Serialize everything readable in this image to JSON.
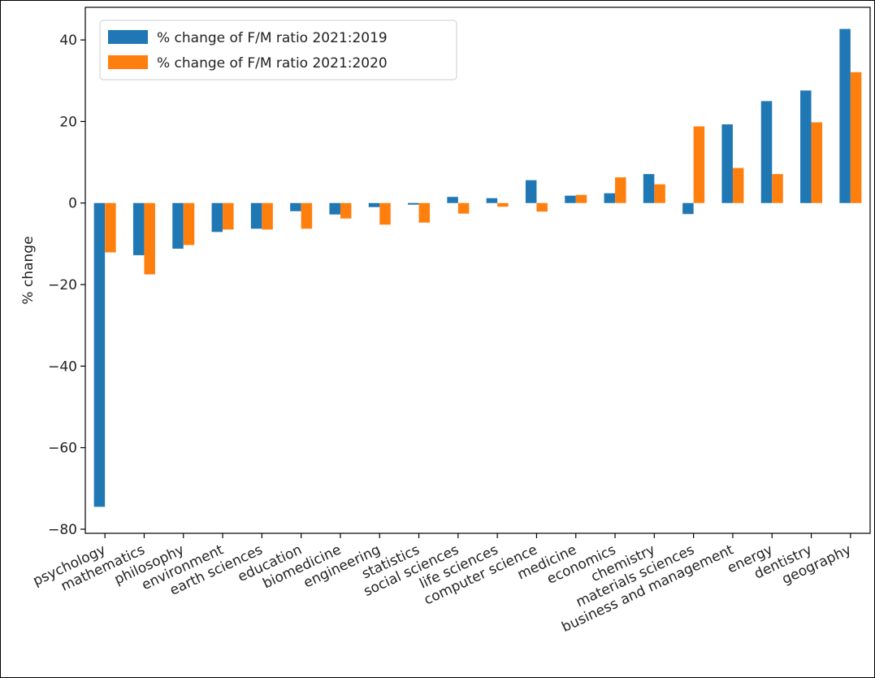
{
  "chart_data": {
    "type": "bar",
    "title": "",
    "xlabel": "",
    "ylabel": "% change",
    "ylim": [
      -81,
      48
    ],
    "yticks": [
      -80,
      -60,
      -40,
      -20,
      0,
      20,
      40
    ],
    "ytick_labels": [
      "−80",
      "−60",
      "−40",
      "−20",
      "0",
      "20",
      "40"
    ],
    "grid": false,
    "legend_position": "top-left",
    "categories": [
      "psychology",
      "mathematics",
      "philosophy",
      "environment",
      "earth sciences",
      "education",
      "biomedicine",
      "engineering",
      "statistics",
      "social sciences",
      "life sciences",
      "computer science",
      "medicine",
      "economics",
      "chemistry",
      "materials sciences",
      "business and management",
      "energy",
      "dentistry",
      "geography"
    ],
    "series": [
      {
        "name": "% change of F/M ratio 2021:2019",
        "color": "#1f77b4",
        "values": [
          -74.5,
          -12.8,
          -11.2,
          -7.1,
          -6.3,
          -2.0,
          -2.8,
          -1.0,
          -0.4,
          1.5,
          1.2,
          5.6,
          1.8,
          2.4,
          7.1,
          -2.7,
          19.3,
          25.0,
          27.6,
          42.7
        ]
      },
      {
        "name": "% change of F/M ratio 2021:2020",
        "color": "#ff7f0e",
        "values": [
          -12.1,
          -17.5,
          -10.3,
          -6.5,
          -6.5,
          -6.3,
          -3.8,
          -5.3,
          -4.8,
          -2.6,
          -0.9,
          -2.1,
          2.0,
          6.3,
          4.6,
          18.8,
          8.6,
          7.1,
          19.8,
          32.1
        ]
      }
    ]
  }
}
